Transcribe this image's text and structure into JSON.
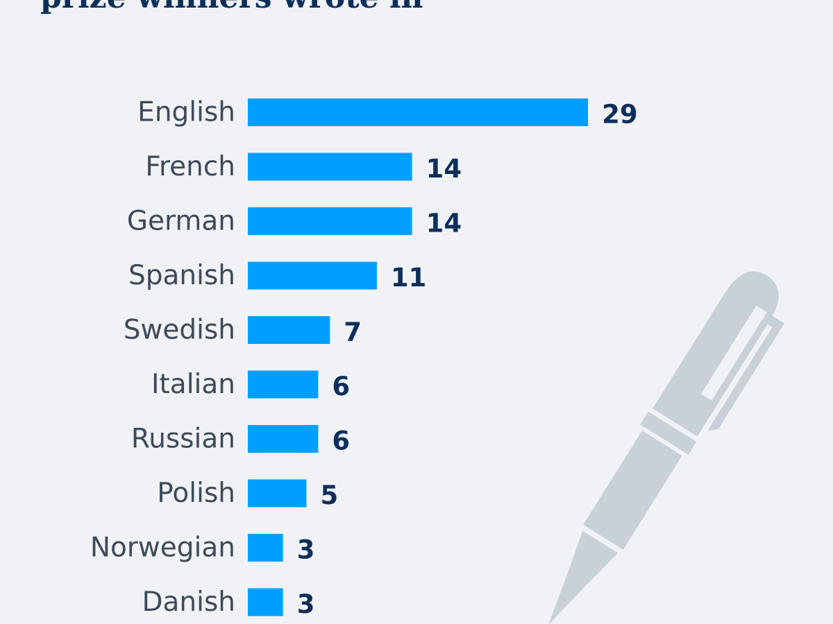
{
  "page": {
    "background": "#f0f2f5"
  },
  "title": {
    "visible_text": "prize winners wrote in"
  },
  "chart_data": {
    "type": "bar",
    "orientation": "horizontal",
    "title": "prize winners wrote in",
    "categories": [
      "English",
      "French",
      "German",
      "Spanish",
      "Swedish",
      "Italian",
      "Russian",
      "Polish",
      "Norwegian",
      "Danish"
    ],
    "values": [
      29,
      14,
      14,
      11,
      7,
      6,
      6,
      5,
      3,
      3
    ],
    "data_labels": [
      "29",
      "14",
      "14",
      "11",
      "7",
      "6",
      "6",
      "5",
      "3",
      "3"
    ],
    "xlabel": "",
    "ylabel": "",
    "grid": false,
    "legend": "none",
    "bar_color": "#009fff",
    "value_label_color": "#0c2f5a",
    "category_label_color": "#3d4a58"
  },
  "decoration": {
    "icon": "fountain-pen-icon",
    "color": "#c9d1d8"
  }
}
